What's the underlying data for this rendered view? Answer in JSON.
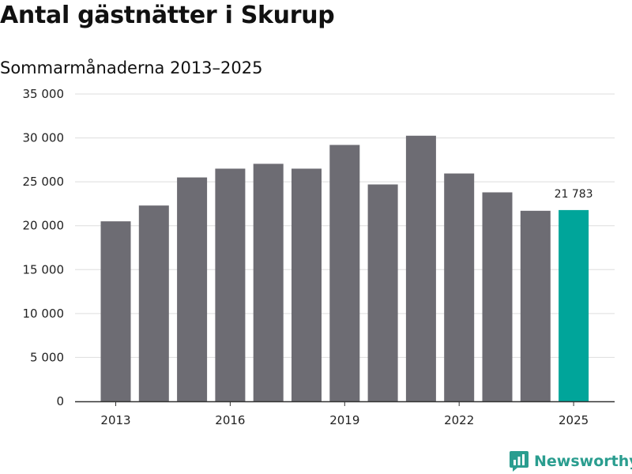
{
  "header": {
    "title": "Antal gästnätter i Skurup",
    "subtitle": "Sommarmånaderna 2013–2025"
  },
  "brand": {
    "name": "Newsworthy",
    "color": "#2a9d8f"
  },
  "colors": {
    "bar": "#6d6c73",
    "highlight": "#00a59a",
    "grid": "#dddddd",
    "axis": "#333333"
  },
  "chart_data": {
    "type": "bar",
    "categories": [
      "2013",
      "2014",
      "2015",
      "2016",
      "2017",
      "2018",
      "2019",
      "2020",
      "2021",
      "2022",
      "2023",
      "2024",
      "2025"
    ],
    "values": [
      20500,
      22300,
      25500,
      26500,
      27050,
      26500,
      29200,
      24700,
      30250,
      25950,
      23800,
      21700,
      21783
    ],
    "highlight_index": 12,
    "data_labels": [
      {
        "index": 12,
        "text": "21 783"
      }
    ],
    "x_tick_labels": [
      "2013",
      "2016",
      "2019",
      "2022",
      "2025"
    ],
    "y_ticks": [
      0,
      5000,
      10000,
      15000,
      20000,
      25000,
      30000,
      35000
    ],
    "y_tick_labels": [
      "0",
      "5 000",
      "10 000",
      "15 000",
      "20 000",
      "25 000",
      "30 000",
      "35 000"
    ],
    "ylim": [
      0,
      35000
    ],
    "grid": true,
    "xlabel": "",
    "ylabel": ""
  }
}
